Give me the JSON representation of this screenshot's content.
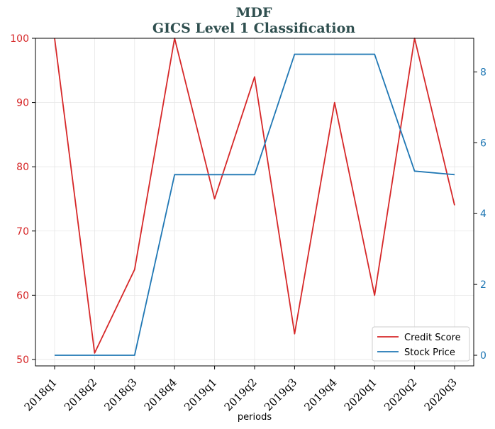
{
  "chart_data": {
    "type": "line",
    "title": "MDF",
    "subtitle": "GICS Level 1 Classification",
    "xlabel": "periods",
    "categories": [
      "2018q1",
      "2018q2",
      "2018q3",
      "2018q4",
      "2019q1",
      "2019q2",
      "2019q3",
      "2019q4",
      "2020q1",
      "2020q2",
      "2020q3"
    ],
    "series": [
      {
        "name": "Credit Score",
        "axis": "left",
        "color": "#d62728",
        "values": [
          100,
          51,
          64,
          100,
          75,
          94,
          54,
          90,
          60,
          100,
          74
        ]
      },
      {
        "name": "Stock Price",
        "axis": "right",
        "color": "#1f77b4",
        "values": [
          0.0,
          0.0,
          0.0,
          5.1,
          5.1,
          5.1,
          8.5,
          8.5,
          8.5,
          5.2,
          5.1
        ]
      }
    ],
    "y_left": {
      "ylim": [
        49,
        100
      ],
      "ticks": [
        50,
        60,
        70,
        80,
        90,
        100
      ],
      "color": "#d62728"
    },
    "y_right": {
      "ylim": [
        -0.3,
        8.95
      ],
      "ticks": [
        0,
        2,
        4,
        6,
        8
      ],
      "color": "#1f77b4"
    },
    "grid": true,
    "legend": {
      "placement": "bottom-right"
    }
  }
}
